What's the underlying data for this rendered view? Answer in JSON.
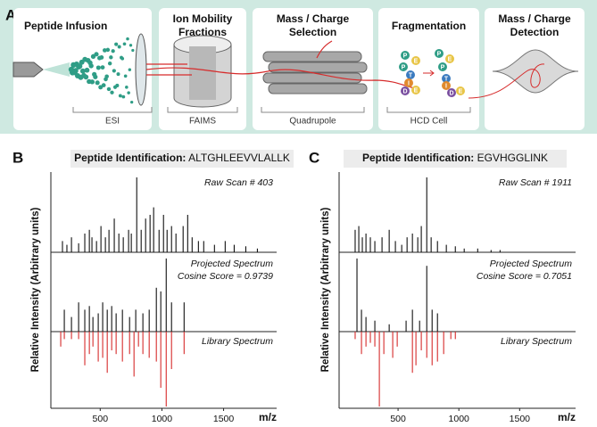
{
  "panel_a": {
    "label": "A",
    "steps": [
      {
        "title_lines": [
          "Peptide Infusion"
        ],
        "device": "ESI"
      },
      {
        "title_lines": [
          "Ion Mobility",
          "Fractions"
        ],
        "device": "FAIMS"
      },
      {
        "title_lines": [
          "Mass / Charge",
          "Selection"
        ],
        "device": "Quadrupole"
      },
      {
        "title_lines": [
          "Fragmentation"
        ],
        "device": "HCD Cell"
      },
      {
        "title_lines": [
          "Mass / Charge",
          "Detection"
        ]
      }
    ],
    "fragments": [
      "P",
      "E",
      "P",
      "T",
      "I",
      "D",
      "E"
    ]
  },
  "chart_data": [
    {
      "type": "spectrum",
      "panel": "B",
      "title_label": "Peptide Identification:",
      "peptide": "ALTGHLEEVVLALLK",
      "annotations": {
        "raw": "Raw Scan # 403",
        "projected": "Projected Spectrum",
        "cosine": "Cosine Score = 0.9739",
        "library": "Library Spectrum"
      },
      "ylabel": "Relative Intensity (Arbitrary units)",
      "xlabel": "m/z",
      "xlim": [
        100,
        1930
      ],
      "xticks": [
        500,
        1000,
        1500
      ],
      "ylim": [
        0,
        1
      ],
      "series": [
        {
          "color": "#111111",
          "x": [
            194,
            230,
            267,
            325,
            375,
            412,
            433,
            470,
            506,
            542,
            571,
            614,
            651,
            687,
            730,
            752,
            796,
            832,
            868,
            904,
            933,
            977,
            1013,
            1042,
            1078,
            1114,
            1172,
            1209,
            1245,
            1296,
            1339,
            1426,
            1513,
            1586,
            1680,
            1774
          ],
          "values": [
            0.15,
            0.1,
            0.2,
            0.12,
            0.25,
            0.3,
            0.2,
            0.15,
            0.35,
            0.2,
            0.3,
            0.45,
            0.25,
            0.2,
            0.3,
            0.25,
            1.0,
            0.3,
            0.45,
            0.5,
            0.6,
            0.3,
            0.5,
            0.3,
            0.35,
            0.25,
            0.35,
            0.5,
            0.2,
            0.15,
            0.15,
            0.1,
            0.15,
            0.1,
            0.08,
            0.05
          ]
        },
        {
          "color": "#111111",
          "x": [
            209,
            267,
            325,
            375,
            412,
            441,
            484,
            520,
            557,
            593,
            629,
            680,
            738,
            788,
            846,
            897,
            955,
            991,
            1035,
            1078,
            1180
          ],
          "values": [
            0.3,
            0.2,
            0.4,
            0.3,
            0.35,
            0.2,
            0.25,
            0.4,
            0.3,
            0.35,
            0.25,
            0.3,
            0.2,
            0.3,
            0.25,
            0.3,
            0.6,
            0.55,
            1.0,
            0.4,
            0.4
          ]
        },
        {
          "color": "#d62b2b",
          "mirror": true,
          "x": [
            180,
            209,
            267,
            325,
            375,
            412,
            441,
            484,
            520,
            557,
            593,
            629,
            680,
            738,
            774,
            810,
            846,
            897,
            955,
            991,
            1035,
            1078,
            1180
          ],
          "values": [
            0.2,
            0.1,
            0.1,
            0.1,
            0.45,
            0.3,
            0.2,
            0.4,
            0.35,
            0.55,
            0.25,
            0.3,
            0.4,
            0.3,
            0.6,
            0.2,
            0.3,
            0.35,
            0.4,
            0.75,
            1.0,
            0.5,
            0.3
          ]
        }
      ]
    },
    {
      "type": "spectrum",
      "panel": "C",
      "title_label": "Peptide Identification:",
      "peptide": "EGVHGGLINK",
      "annotations": {
        "raw": "Raw Scan # 1911",
        "projected": "Projected Spectrum",
        "cosine": "Cosine Score = 0.7051",
        "library": "Library Spectrum"
      },
      "ylabel": "Relative Intensity (Arbitrary units)",
      "xlabel": "m/z",
      "xlim": [
        15,
        1960
      ],
      "xticks": [
        500,
        1000,
        1500
      ],
      "ylim": [
        0,
        1
      ],
      "series": [
        {
          "color": "#111111",
          "x": [
            147,
            177,
            206,
            236,
            272,
            309,
            368,
            427,
            478,
            530,
            574,
            618,
            662,
            691,
            736,
            772,
            824,
            897,
            971,
            1044,
            1155,
            1265,
            1339
          ],
          "values": [
            0.3,
            0.35,
            0.2,
            0.25,
            0.2,
            0.15,
            0.2,
            0.3,
            0.15,
            0.1,
            0.2,
            0.25,
            0.2,
            0.35,
            1.0,
            0.2,
            0.15,
            0.1,
            0.08,
            0.05,
            0.05,
            0.03,
            0.03
          ]
        },
        {
          "color": "#111111",
          "x": [
            162,
            199,
            236,
            309,
            427,
            566,
            618,
            677,
            736,
            780,
            824
          ],
          "values": [
            1.0,
            0.3,
            0.2,
            0.15,
            0.1,
            0.15,
            0.3,
            0.15,
            0.9,
            0.3,
            0.25
          ]
        },
        {
          "color": "#d62b2b",
          "mirror": true,
          "x": [
            147,
            199,
            236,
            272,
            309,
            346,
            383,
            456,
            493,
            618,
            647,
            691,
            736,
            780,
            824,
            875,
            934,
            971
          ],
          "values": [
            0.1,
            0.3,
            0.2,
            0.15,
            0.2,
            1.0,
            0.3,
            0.35,
            0.2,
            0.55,
            0.45,
            0.25,
            0.35,
            0.45,
            0.4,
            0.3,
            0.1,
            0.1
          ]
        }
      ]
    }
  ]
}
